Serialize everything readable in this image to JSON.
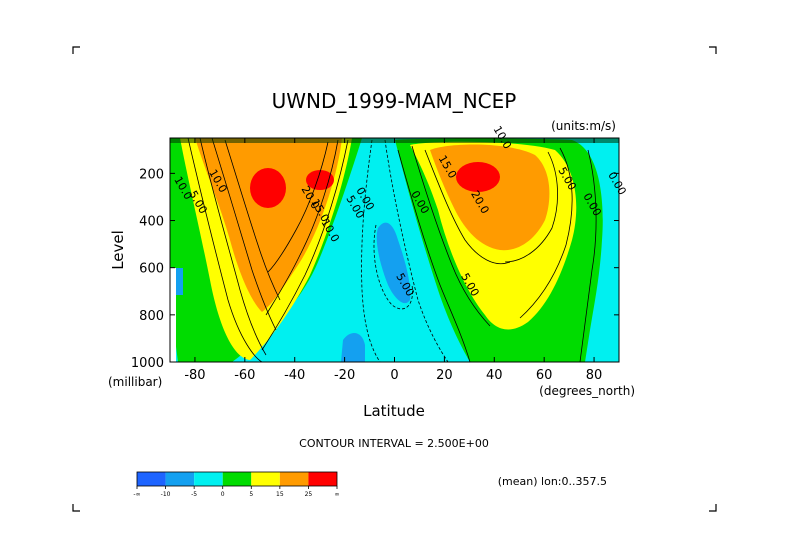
{
  "chart_data": {
    "type": "contour",
    "title": "UWND_1999-MAM_NCEP",
    "units_label": "(units:m/s)",
    "xlabel": "Latitude",
    "ylabel": "Level",
    "x_unit_label": "(degrees_north)",
    "y_unit_label": "(millibar)",
    "xlim": [
      -90,
      90
    ],
    "ylim": [
      1000,
      50
    ],
    "x_ticks": [
      -80,
      -60,
      -40,
      -20,
      0,
      20,
      40,
      60,
      80
    ],
    "x_tick_labels": [
      "-80",
      "-60",
      "-40",
      "-20",
      "0",
      "20",
      "40",
      "60",
      "80"
    ],
    "y_ticks": [
      200,
      400,
      600,
      800,
      1000
    ],
    "y_tick_labels": [
      "200",
      "400",
      "600",
      "800",
      "1000"
    ],
    "contour_interval_label": "CONTOUR INTERVAL = 2.500E+00",
    "mean_label": "(mean) lon:0..357.5",
    "colorbar": {
      "colors": [
        "#1e64ff",
        "#14a0f0",
        "#00f0f0",
        "#00dc00",
        "#ffff00",
        "#ff9b00",
        "#ff0000"
      ],
      "labels": [
        "-∞",
        "-10",
        "-5",
        "0",
        "5",
        "15",
        "25",
        "∞"
      ]
    },
    "features": [
      {
        "name": "southern-jet",
        "lat": -53,
        "level": 250,
        "peak": 27.5
      },
      {
        "name": "southern-jet-secondary",
        "lat": -29,
        "level": 200,
        "peak": 26
      },
      {
        "name": "northern-jet",
        "lat": 32,
        "level": 200,
        "peak": 30
      },
      {
        "name": "tropical-easterlies-upper",
        "lat": -2,
        "level": 450,
        "peak": -6
      },
      {
        "name": "tropical-easterlies-lower",
        "lat": -17,
        "level": 940,
        "peak": -6
      }
    ],
    "contour_labels": [
      {
        "text": "10.0",
        "lat": -86,
        "level": 270
      },
      {
        "text": "5.00",
        "lat": -80,
        "level": 330
      },
      {
        "text": "10.0",
        "lat": -72,
        "level": 240
      },
      {
        "text": "20.0",
        "lat": -35,
        "level": 310
      },
      {
        "text": "15.0",
        "lat": -31,
        "level": 365
      },
      {
        "text": "10.0",
        "lat": -27,
        "level": 450
      },
      {
        "text": "5.00",
        "lat": -17,
        "level": 350
      },
      {
        "text": "0.00",
        "lat": -13,
        "level": 315
      },
      {
        "text": "5.00",
        "lat": 3,
        "level": 680
      },
      {
        "text": "0.00",
        "lat": 9,
        "level": 330
      },
      {
        "text": "15.0",
        "lat": 20,
        "level": 180
      },
      {
        "text": "10.0",
        "lat": 42,
        "level": 55
      },
      {
        "text": "20.0",
        "lat": 33,
        "level": 330
      },
      {
        "text": "5.00",
        "lat": 29,
        "level": 680
      },
      {
        "text": "5.00",
        "lat": 68,
        "level": 230
      },
      {
        "text": "0.00",
        "lat": 78,
        "level": 340
      },
      {
        "text": "0.00",
        "lat": 88,
        "level": 250
      }
    ]
  }
}
